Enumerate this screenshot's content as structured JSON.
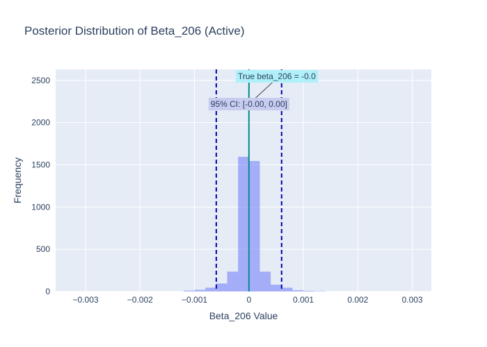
{
  "chart_data": {
    "type": "bar",
    "title": "Posterior Distribution of Beta_206 (Active)",
    "xlabel": "Beta_206 Value",
    "ylabel": "Frequency",
    "xlim": [
      -0.00355,
      0.00335
    ],
    "ylim": [
      0,
      2630
    ],
    "x_ticks": [
      {
        "value": -0.003,
        "label": "−0.003"
      },
      {
        "value": -0.002,
        "label": "−0.002"
      },
      {
        "value": -0.001,
        "label": "−0.001"
      },
      {
        "value": 0,
        "label": "0"
      },
      {
        "value": 0.001,
        "label": "0.001"
      },
      {
        "value": 0.002,
        "label": "0.002"
      },
      {
        "value": 0.003,
        "label": "0.003"
      }
    ],
    "y_ticks": [
      {
        "value": 0,
        "label": "0"
      },
      {
        "value": 500,
        "label": "500"
      },
      {
        "value": 1000,
        "label": "1000"
      },
      {
        "value": 1500,
        "label": "1500"
      },
      {
        "value": 2000,
        "label": "2000"
      },
      {
        "value": 2500,
        "label": "2500"
      }
    ],
    "bin_width": 0.0002,
    "bins": [
      {
        "start": -0.0012,
        "end": -0.001,
        "count": 10
      },
      {
        "start": -0.001,
        "end": -0.0008,
        "count": 20
      },
      {
        "start": -0.0008,
        "end": -0.0006,
        "count": 45
      },
      {
        "start": -0.0006,
        "end": -0.0004,
        "count": 95
      },
      {
        "start": -0.0004,
        "end": -0.0002,
        "count": 235
      },
      {
        "start": -0.0002,
        "end": 0.0,
        "count": 1595
      },
      {
        "start": 0.0,
        "end": 0.0002,
        "count": 1545
      },
      {
        "start": 0.0002,
        "end": 0.0004,
        "count": 235
      },
      {
        "start": 0.0004,
        "end": 0.0006,
        "count": 80
      },
      {
        "start": 0.0006,
        "end": 0.0008,
        "count": 45
      },
      {
        "start": 0.0008,
        "end": 0.001,
        "count": 15
      },
      {
        "start": 0.001,
        "end": 0.0012,
        "count": 8
      },
      {
        "start": 0.0012,
        "end": 0.0014,
        "count": 4
      }
    ],
    "ci_lower": -0.0006,
    "ci_upper": 0.0006,
    "true_value": 0.0,
    "annotations": {
      "true_label": "True beta_206 = -0.0",
      "ci_label": "95% CI: [-0.00, 0.00]"
    },
    "colors": {
      "bar": "#636efa",
      "ci_line": "#0000aa",
      "true_line": "#008b8b",
      "true_label_bg": "#b0f0f8",
      "ci_label_bg": "#c8cdf0",
      "plot_bg": "#e5ecf6",
      "grid": "#ffffff"
    },
    "grid": true,
    "legend": "none"
  }
}
